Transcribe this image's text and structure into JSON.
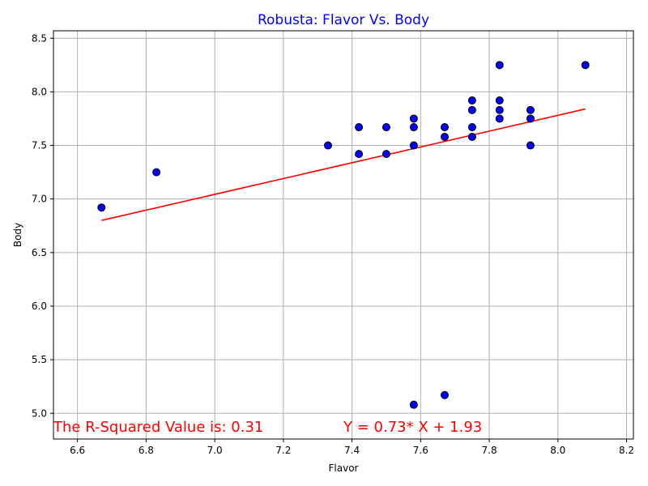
{
  "chart_data": {
    "type": "scatter",
    "title": "Robusta: Flavor Vs. Body",
    "xlabel": "Flavor",
    "ylabel": "Body",
    "xlim": [
      6.53,
      8.22
    ],
    "ylim": [
      4.76,
      8.57
    ],
    "xticks": [
      6.6,
      6.8,
      7.0,
      7.2,
      7.4,
      7.6,
      7.8,
      8.0,
      8.2
    ],
    "yticks": [
      5.0,
      5.5,
      6.0,
      6.5,
      7.0,
      7.5,
      8.0,
      8.5
    ],
    "xtick_labels": [
      "6.6",
      "6.8",
      "7.0",
      "7.2",
      "7.4",
      "7.6",
      "7.8",
      "8.0",
      "8.2"
    ],
    "ytick_labels": [
      "5.0",
      "5.5",
      "6.0",
      "6.5",
      "7.0",
      "7.5",
      "8.0",
      "8.5"
    ],
    "grid": true,
    "series": [
      {
        "type": "scatter",
        "points": [
          [
            6.67,
            6.92
          ],
          [
            6.83,
            7.25
          ],
          [
            7.33,
            7.5
          ],
          [
            7.42,
            7.67
          ],
          [
            7.42,
            7.42
          ],
          [
            7.5,
            7.67
          ],
          [
            7.5,
            7.42
          ],
          [
            7.58,
            7.75
          ],
          [
            7.58,
            7.67
          ],
          [
            7.58,
            7.5
          ],
          [
            7.58,
            5.08
          ],
          [
            7.67,
            7.67
          ],
          [
            7.67,
            7.58
          ],
          [
            7.67,
            5.17
          ],
          [
            7.75,
            7.92
          ],
          [
            7.75,
            7.83
          ],
          [
            7.75,
            7.67
          ],
          [
            7.75,
            7.58
          ],
          [
            7.83,
            8.25
          ],
          [
            7.83,
            7.92
          ],
          [
            7.83,
            7.83
          ],
          [
            7.83,
            7.75
          ],
          [
            7.92,
            7.83
          ],
          [
            7.92,
            7.75
          ],
          [
            7.92,
            7.5
          ],
          [
            8.08,
            8.25
          ]
        ]
      },
      {
        "type": "line",
        "x": [
          6.67,
          8.08
        ],
        "y": [
          6.8,
          7.84
        ]
      }
    ],
    "annotations": [
      "The R-Squared Value is: 0.31",
      "Y = 0.73* X + 1.93"
    ]
  },
  "colors": {
    "marker_fill": "#0000ff",
    "marker_edge": "#000000",
    "regression_line": "#ff0000",
    "title": "#0000ff",
    "annotation": "#ff0000",
    "grid": "#b0b0b0"
  }
}
